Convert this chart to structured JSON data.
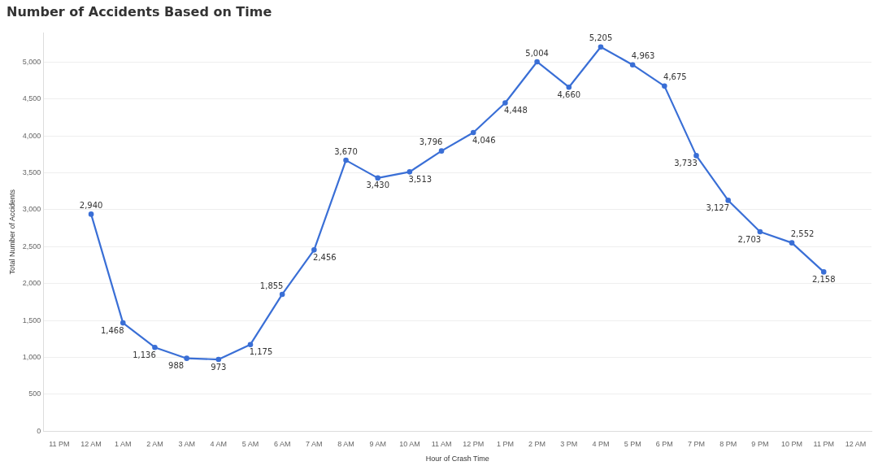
{
  "chart_data": {
    "type": "line",
    "title": "Number of Accidents Based on Time",
    "xlabel": "Hour of Crash Time",
    "ylabel": "Total Number of Accidents",
    "categories": [
      "11 PM",
      "12 AM",
      "1 AM",
      "2 AM",
      "3 AM",
      "4 AM",
      "5 AM",
      "6 AM",
      "7 AM",
      "8 AM",
      "9 AM",
      "10 AM",
      "11 AM",
      "12 PM",
      "1 PM",
      "2 PM",
      "3 PM",
      "4 PM",
      "5 PM",
      "6 PM",
      "7 PM",
      "8 PM",
      "9 PM",
      "10 PM",
      "11 PM",
      "12 AM"
    ],
    "series": [
      {
        "color": "#3a6fd6",
        "values": [
          null,
          2940,
          1468,
          1136,
          988,
          973,
          1175,
          1855,
          2456,
          3670,
          3430,
          3513,
          3796,
          4046,
          4448,
          5004,
          4660,
          5205,
          4963,
          4675,
          3733,
          3127,
          2703,
          2552,
          2158,
          null
        ],
        "value_labels": [
          null,
          "2,940",
          "1,468",
          "1,136",
          "988",
          "973",
          "1,175",
          "1,855",
          "2,456",
          "3,670",
          "3,430",
          "3,513",
          "3,796",
          "4,046",
          "4,448",
          "5,004",
          "4,660",
          "5,205",
          "4,963",
          "4,675",
          "3,733",
          "3,127",
          "2,703",
          "2,552",
          "2,158",
          null
        ]
      }
    ],
    "ylim": [
      0,
      5400
    ],
    "yticks": [
      0,
      500,
      {
        "value": 1000,
        "label": "1,000"
      },
      {
        "value": 1500,
        "label": "1,500"
      },
      {
        "value": 2000,
        "label": "2,000"
      },
      {
        "value": 2500,
        "label": "2,500"
      },
      {
        "value": 3000,
        "label": "3,000"
      },
      {
        "value": 3500,
        "label": "3,500"
      },
      {
        "value": 4000,
        "label": "4,000"
      },
      {
        "value": 4500,
        "label": "4,500"
      },
      {
        "value": 5000,
        "label": "5,000"
      }
    ],
    "grid": "y",
    "marker": "circle",
    "line_style": "solid"
  }
}
